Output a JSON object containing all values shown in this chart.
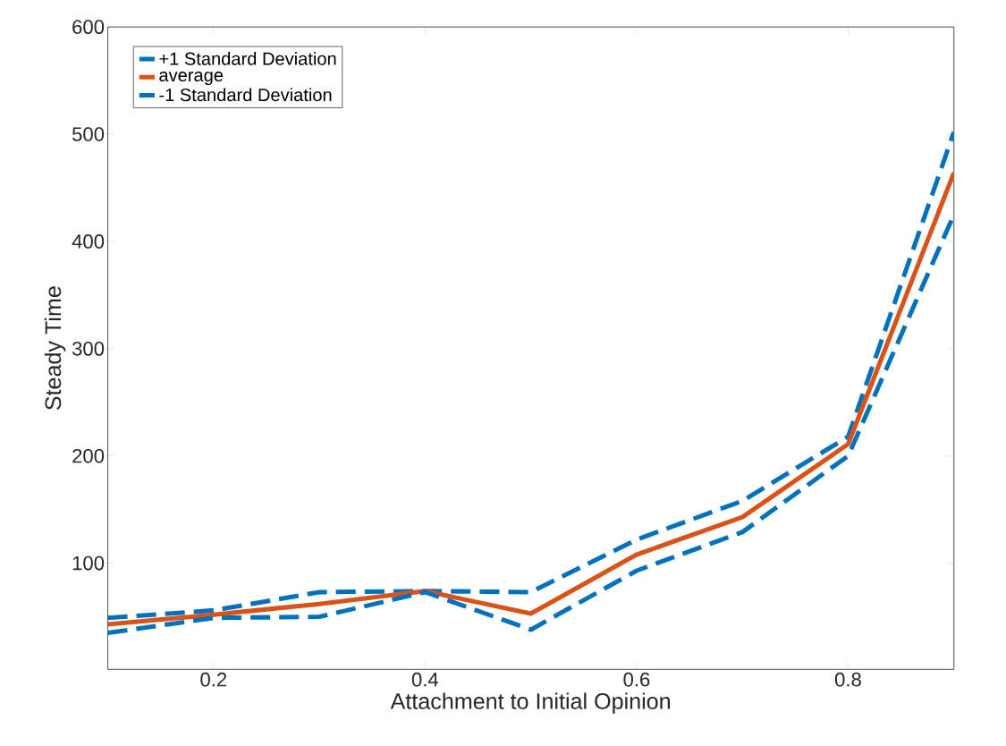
{
  "chart_data": {
    "type": "line",
    "xlabel": "Attachment to Initial Opinion",
    "ylabel": "Steady Time",
    "x": [
      0.1,
      0.2,
      0.3,
      0.4,
      0.5,
      0.6,
      0.7,
      0.8,
      0.9
    ],
    "series": [
      {
        "name": "+1 Standard Deviation",
        "color": "#0072bd",
        "line_style": "dashed",
        "values": [
          49,
          56,
          73,
          74,
          73,
          122,
          158,
          218,
          502
        ]
      },
      {
        "name": "average",
        "color": "#d95319",
        "line_style": "solid",
        "values": [
          43,
          52,
          62,
          74,
          53,
          108,
          143,
          211,
          464
        ]
      },
      {
        "name": "-1 Standard Deviation",
        "color": "#0072bd",
        "line_style": "dashed",
        "values": [
          35,
          49,
          50,
          73,
          38,
          93,
          129,
          200,
          425
        ]
      }
    ],
    "xlim": [
      0.1,
      0.9
    ],
    "ylim": [
      1,
      600
    ],
    "xticks": [
      0.2,
      0.4,
      0.6,
      0.8
    ],
    "yticks": [
      100,
      200,
      300,
      400,
      500,
      600
    ],
    "grid": false,
    "legend": "top left",
    "marker": "none"
  }
}
